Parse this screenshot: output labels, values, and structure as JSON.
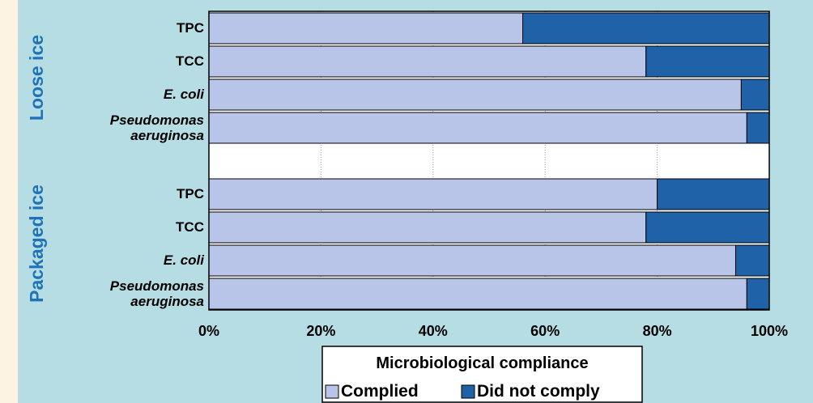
{
  "chart_data": {
    "type": "stacked_bar_horizontal_percent",
    "groups": [
      "Loose ice",
      "Packaged ice"
    ],
    "categories": [
      "TPC",
      "TCC",
      "E. coli",
      "Pseudomonas aeruginosa",
      "TPC",
      "TCC",
      "E. coli",
      "Pseudomonas aeruginosa"
    ],
    "category_italic": [
      false,
      false,
      true,
      true,
      false,
      false,
      true,
      true
    ],
    "series": [
      {
        "name": "Complied",
        "color": "#b8c5e8",
        "values": [
          56,
          78,
          95,
          96,
          80,
          78,
          94,
          96
        ]
      },
      {
        "name": "Did not comply",
        "color": "#1f62a8",
        "values": [
          44,
          22,
          5,
          4,
          20,
          22,
          6,
          4
        ]
      }
    ],
    "xlim": [
      0,
      100
    ],
    "xticks": [
      {
        "value": 0,
        "label": "0%"
      },
      {
        "value": 20,
        "label": "20%"
      },
      {
        "value": 40,
        "label": "40%"
      },
      {
        "value": 60,
        "label": "60%"
      },
      {
        "value": 80,
        "label": "80%"
      },
      {
        "value": 100,
        "label": "100%"
      }
    ],
    "grid": true,
    "legend_title": "Microbiological compliance",
    "legend_position": "bottom"
  }
}
